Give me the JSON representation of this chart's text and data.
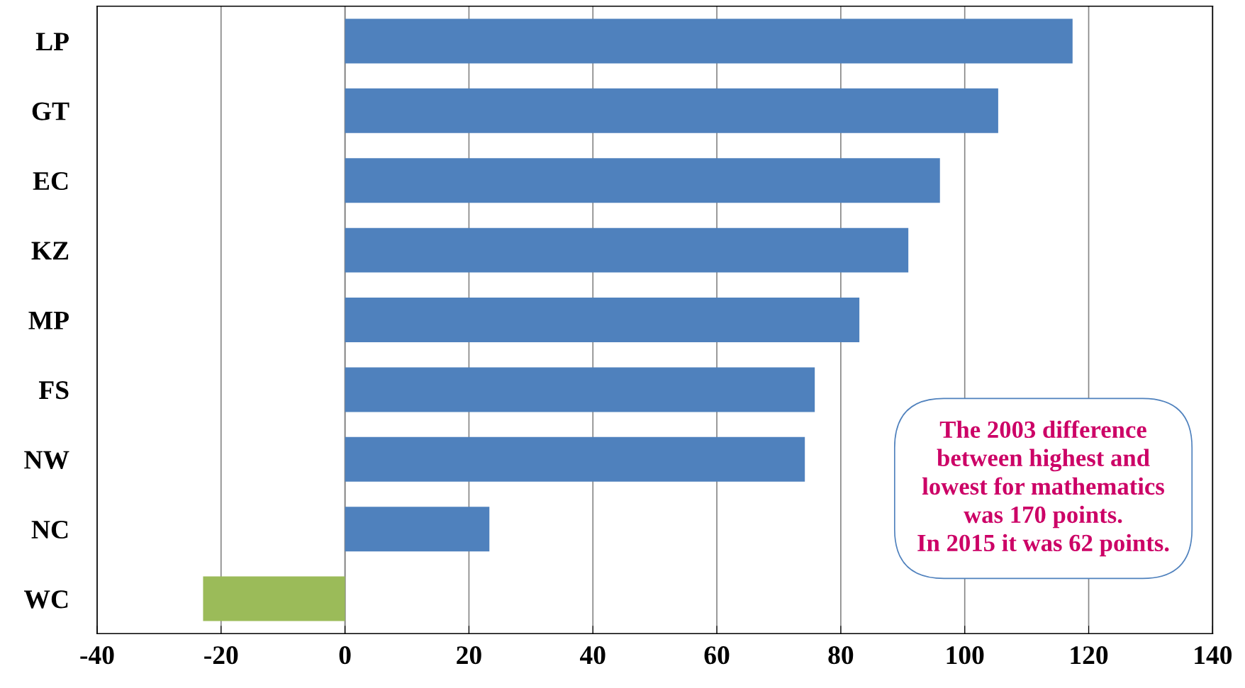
{
  "chart_data": {
    "type": "bar",
    "orientation": "horizontal",
    "categories": [
      "LP",
      "GT",
      "EC",
      "KZ",
      "MP",
      "FS",
      "NW",
      "NC",
      "WC"
    ],
    "values": [
      117.4,
      105.4,
      96,
      90.9,
      83,
      75.8,
      74.2,
      23.3,
      -22.9
    ],
    "colors": [
      "#4f81bd",
      "#4f81bd",
      "#4f81bd",
      "#4f81bd",
      "#4f81bd",
      "#4f81bd",
      "#4f81bd",
      "#4f81bd",
      "#9bbb59"
    ],
    "xlim": [
      -40,
      140
    ],
    "xticks": [
      -40,
      -20,
      0,
      20,
      40,
      60,
      80,
      100,
      120,
      140
    ],
    "grid": "x",
    "annotations": [
      "The 2003 difference\nbetween highest and\nlowest for mathematics\nwas 170 points.\nIn 2015 it was 62 points."
    ]
  }
}
